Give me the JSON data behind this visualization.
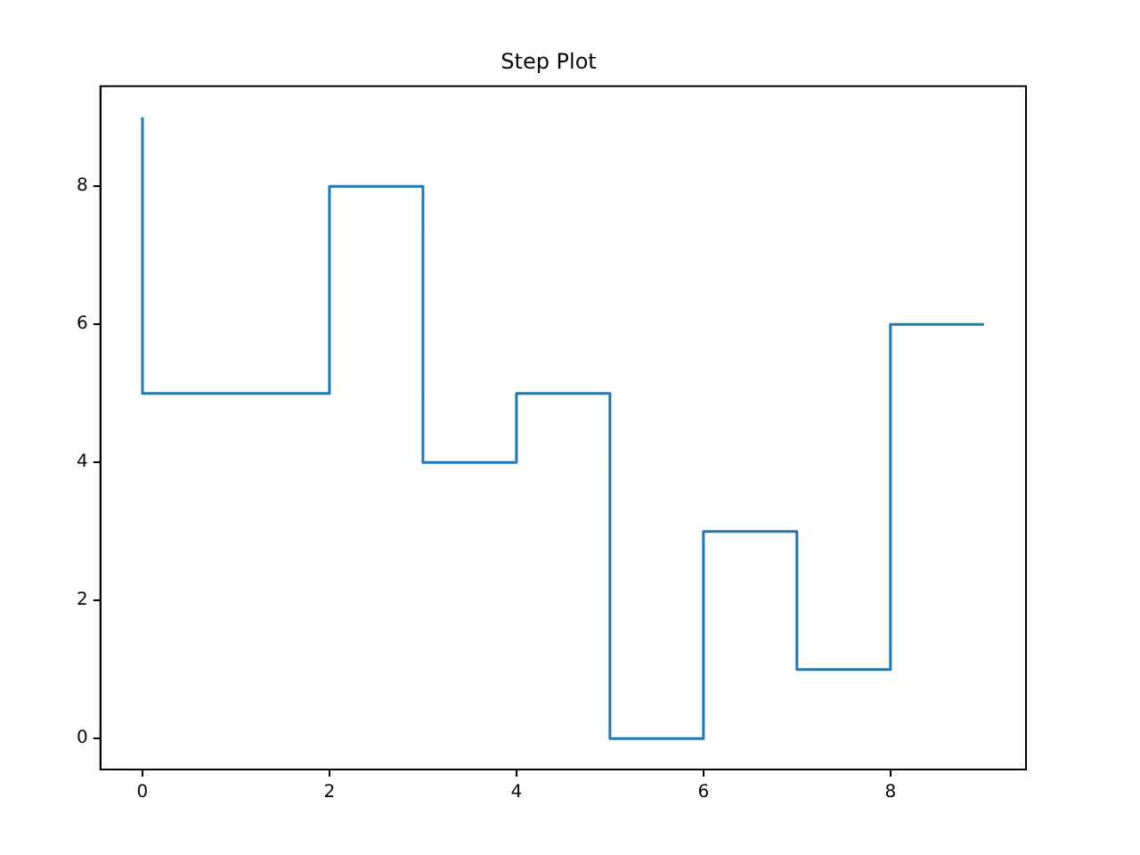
{
  "chart_data": {
    "type": "step",
    "title": "Step Plot",
    "x": [
      0,
      1,
      2,
      3,
      4,
      5,
      6,
      7,
      8,
      9
    ],
    "values": [
      9,
      5,
      5,
      8,
      4,
      5,
      0,
      3,
      1,
      6
    ],
    "color": "#1f77b4",
    "xlim": [
      -0.45,
      9.45
    ],
    "xticks": [
      0,
      2,
      4,
      6,
      8
    ],
    "ylim": [
      -0.45,
      9.45
    ],
    "yticks": [
      0,
      2,
      4,
      6,
      8
    ]
  }
}
